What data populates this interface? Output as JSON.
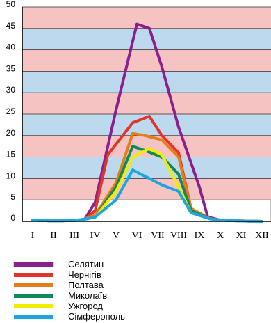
{
  "chart_data": {
    "type": "line",
    "categories": [
      "I",
      "II",
      "III",
      "IV",
      "V",
      "VI",
      "VII",
      "VIII",
      "IX",
      "X",
      "XI",
      "XII"
    ],
    "y_ticks": [
      "0",
      "5",
      "10",
      "15",
      "20",
      "25",
      "30",
      "35",
      "40",
      "45",
      "50"
    ],
    "ylim": [
      0,
      50
    ],
    "grid": "horizontal bands",
    "band_colors": [
      "#bdd9ee",
      "#f5c4c2"
    ],
    "legend_position": "bottom-left",
    "series": [
      {
        "name": "Селятин",
        "color": "#8b1f8b",
        "points": [
          [
            1,
            0.3
          ],
          [
            2,
            0.1
          ],
          [
            3,
            0.2
          ],
          [
            3.5,
            0.5
          ],
          [
            4,
            4.5
          ],
          [
            5,
            26
          ],
          [
            6,
            46
          ],
          [
            6.6,
            45
          ],
          [
            7.2,
            36
          ],
          [
            8,
            22
          ],
          [
            9,
            8
          ],
          [
            9.4,
            1
          ],
          [
            10,
            0.3
          ],
          [
            11,
            0.1
          ],
          [
            12,
            0
          ]
        ]
      },
      {
        "name": "Чернігів",
        "color": "#e3342b",
        "points": [
          [
            1,
            0.3
          ],
          [
            2,
            0.1
          ],
          [
            3,
            0.2
          ],
          [
            3.5,
            0.5
          ],
          [
            4,
            2.5
          ],
          [
            4.6,
            15.5
          ],
          [
            5.8,
            23
          ],
          [
            6.6,
            24.5
          ],
          [
            7.2,
            20
          ],
          [
            8,
            16
          ],
          [
            8.6,
            3
          ],
          [
            9.5,
            0.6
          ],
          [
            10,
            0.3
          ],
          [
            11,
            0.1
          ],
          [
            12,
            0
          ]
        ]
      },
      {
        "name": "Полтава",
        "color": "#e67d1c",
        "points": [
          [
            1,
            0.3
          ],
          [
            2,
            0.1
          ],
          [
            3,
            0.2
          ],
          [
            3.5,
            0.5
          ],
          [
            4,
            1.5
          ],
          [
            5,
            9
          ],
          [
            5.8,
            20.5
          ],
          [
            6.4,
            20
          ],
          [
            7.2,
            19
          ],
          [
            8,
            15
          ],
          [
            8.6,
            3
          ],
          [
            9.5,
            0.6
          ],
          [
            10,
            0.3
          ],
          [
            11,
            0.1
          ],
          [
            12,
            0
          ]
        ]
      },
      {
        "name": "Миколаїв",
        "color": "#0f8a5c",
        "points": [
          [
            1,
            0.3
          ],
          [
            2,
            0.1
          ],
          [
            3,
            0.2
          ],
          [
            3.5,
            0.5
          ],
          [
            4,
            1
          ],
          [
            5,
            8
          ],
          [
            5.8,
            17.5
          ],
          [
            6.4,
            16.5
          ],
          [
            7.2,
            15
          ],
          [
            8,
            11
          ],
          [
            8.6,
            2.5
          ],
          [
            9.5,
            0.6
          ],
          [
            10,
            0.3
          ],
          [
            11,
            0.1
          ],
          [
            12,
            0
          ]
        ]
      },
      {
        "name": "Ужгород",
        "color": "#f4ec00",
        "points": [
          [
            1,
            0.3
          ],
          [
            2,
            0.1
          ],
          [
            3,
            0.2
          ],
          [
            3.5,
            0.5
          ],
          [
            4,
            1
          ],
          [
            5,
            7
          ],
          [
            5.8,
            15
          ],
          [
            6.6,
            17
          ],
          [
            7.2,
            15.5
          ],
          [
            8,
            8
          ],
          [
            8.6,
            2
          ],
          [
            9.5,
            0.6
          ],
          [
            10,
            0.3
          ],
          [
            11,
            0.1
          ],
          [
            12,
            0
          ]
        ]
      },
      {
        "name": "Сімферополь",
        "color": "#1aa6de",
        "points": [
          [
            1,
            0.3
          ],
          [
            2,
            0.1
          ],
          [
            3,
            0.2
          ],
          [
            3.5,
            0.5
          ],
          [
            4,
            1
          ],
          [
            5,
            5
          ],
          [
            5.8,
            12
          ],
          [
            6.6,
            10
          ],
          [
            7.2,
            8.5
          ],
          [
            8,
            7
          ],
          [
            8.6,
            2
          ],
          [
            9.5,
            0.6
          ],
          [
            10,
            0.3
          ],
          [
            11,
            0.1
          ],
          [
            12,
            0
          ]
        ]
      }
    ]
  }
}
